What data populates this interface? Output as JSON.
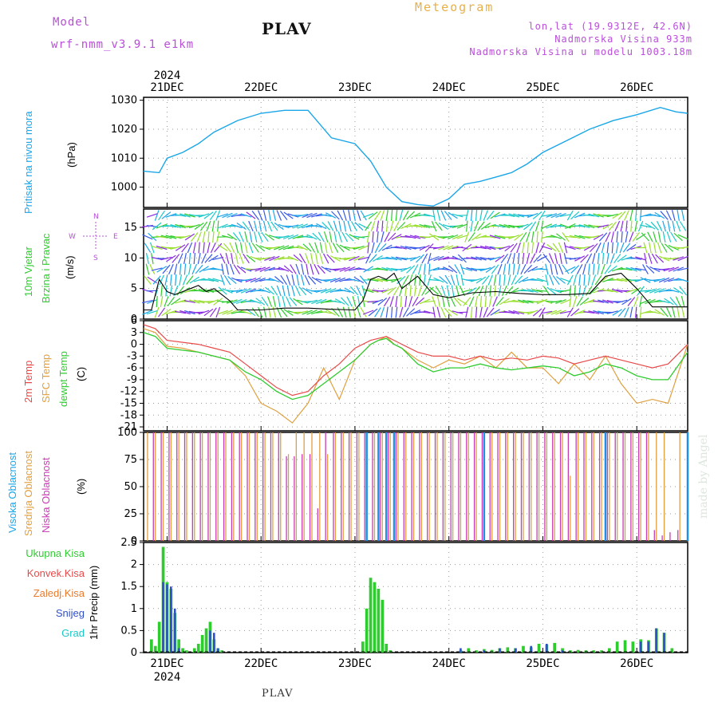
{
  "header": {
    "model_label": "Model",
    "model_name": "wrf-nmm_v3.9.1 e1km",
    "title": "PLAV",
    "subtitle": "Meteogram",
    "coords": "lon,lat (19.9312E, 42.6N)",
    "altitude": "Nadmorska Visina 933m",
    "model_altitude": "Nadmorska Visina u modelu 1003.18m"
  },
  "footer": {
    "station": "PLAV",
    "credit": "made by Angel"
  },
  "time_axis": {
    "year": "2024",
    "days": [
      "21DEC",
      "22DEC",
      "23DEC",
      "24DEC",
      "25DEC",
      "26DEC"
    ],
    "x_range_hours": [
      -6,
      133
    ]
  },
  "panels": {
    "pressure": {
      "label1": "Pritisak na nivou mora",
      "unit": "(hPa)"
    },
    "wind": {
      "label1": "10m Vjetar",
      "label2": "Brzina i Pravac",
      "unit": "(m/s)",
      "compass": [
        "N",
        "E",
        "S",
        "W"
      ]
    },
    "temp": {
      "label1": "2m Temp",
      "label2": "SFC Temp",
      "label3": "dewpt Temp",
      "unit": "(C)"
    },
    "cloud": {
      "label1": "Visoka Oblacnost",
      "label2": "Srednja Oblacnost",
      "label3": "Niska Oblacnost",
      "unit": "(%)"
    },
    "precip": {
      "legend": [
        "Ukupna Kisa",
        "Konvek.Kisa",
        "Zaledj.Kisa",
        "Snijeg",
        "Grad"
      ],
      "unit": "1hr Precip (mm)"
    }
  },
  "colors": {
    "pressure": "#1aa6e8",
    "t2m": "#e84a4a",
    "sfc": "#e0a040",
    "dew": "#2ecc2e",
    "wind_speed": "#000000",
    "gust": "#e84a4a",
    "high_cloud": "#1e90e8",
    "mid_cloud": "#e0a040",
    "low_cloud": "#c83cb4",
    "rain": "#2ecc2e",
    "snow": "#3050c8",
    "label_pressure": "#1aa6e8",
    "label_wind": "#2ecc2e",
    "label_purple": "#b84fd8"
  },
  "chart_data": [
    {
      "type": "line",
      "name": "pressure",
      "x_unit": "hours from 21DEC 00UTC",
      "ylim": [
        993,
        1031
      ],
      "yticks": [
        1000,
        1010,
        1020,
        1030
      ],
      "series": [
        {
          "x": [
            -6,
            -2,
            0,
            4,
            8,
            12,
            18,
            24,
            30,
            36,
            42,
            48,
            52,
            56,
            60,
            64,
            68,
            72,
            76,
            80,
            84,
            88,
            92,
            96,
            102,
            108,
            114,
            120,
            126,
            130,
            133
          ],
          "values": [
            1005.5,
            1005,
            1010,
            1012,
            1015,
            1019,
            1023,
            1025.5,
            1026.5,
            1026.5,
            1017,
            1015,
            1009,
            1000,
            995,
            994,
            993.5,
            996,
            1001,
            1002,
            1003.5,
            1005,
            1008,
            1012,
            1016,
            1020,
            1023,
            1025,
            1027.5,
            1026,
            1025.5
          ]
        }
      ]
    },
    {
      "type": "line",
      "name": "wind",
      "ylim": [
        0,
        18
      ],
      "yticks": [
        0,
        5,
        10,
        15
      ],
      "series": [
        {
          "name": "wind_speed",
          "x": [
            -6,
            -4,
            -2,
            0,
            2,
            4,
            6,
            8,
            10,
            12,
            14,
            16,
            18,
            20,
            24,
            30,
            36,
            42,
            48,
            50,
            52,
            54,
            56,
            58,
            60,
            62,
            64,
            66,
            68,
            72,
            78,
            84,
            90,
            96,
            102,
            108,
            112,
            116,
            120,
            124,
            128,
            133
          ],
          "values": [
            1.5,
            1.5,
            6.5,
            4.5,
            4,
            4.5,
            5,
            5.5,
            4.5,
            5,
            4,
            3,
            1.5,
            1.5,
            1.5,
            1.8,
            1.8,
            1.6,
            1.5,
            3,
            6.5,
            7,
            6.5,
            7.5,
            5,
            6,
            7,
            5.5,
            4,
            3.5,
            4.3,
            4.5,
            4.2,
            4,
            4,
            4.2,
            7,
            7.5,
            5,
            2,
            2,
            2
          ]
        }
      ]
    },
    {
      "type": "line",
      "name": "temperature",
      "ylim": [
        -22,
        6
      ],
      "yticks": [
        6,
        3,
        0,
        -3,
        -6,
        -9,
        -12,
        -15,
        -18,
        -21
      ],
      "series": [
        {
          "name": "t2m",
          "x": [
            -6,
            -3,
            0,
            4,
            8,
            12,
            16,
            20,
            24,
            28,
            32,
            36,
            40,
            44,
            48,
            52,
            54,
            56,
            58,
            60,
            64,
            68,
            72,
            76,
            80,
            84,
            88,
            92,
            96,
            100,
            104,
            108,
            112,
            116,
            120,
            124,
            128,
            133
          ],
          "values": [
            5,
            4,
            1,
            0.5,
            0,
            -1,
            -2,
            -5,
            -8,
            -11,
            -13,
            -12,
            -8,
            -5,
            -1,
            1,
            1.5,
            2,
            1,
            0,
            -2,
            -3,
            -3,
            -4,
            -3,
            -4,
            -3.5,
            -4,
            -3,
            -3.5,
            -5,
            -4,
            -3,
            -4,
            -5,
            -6,
            -5,
            0
          ]
        },
        {
          "name": "sfc",
          "x": [
            -6,
            -3,
            0,
            4,
            8,
            12,
            16,
            20,
            24,
            28,
            32,
            36,
            40,
            44,
            48,
            52,
            54,
            56,
            58,
            60,
            64,
            68,
            72,
            76,
            80,
            84,
            88,
            92,
            96,
            100,
            104,
            108,
            112,
            116,
            120,
            124,
            128,
            133
          ],
          "values": [
            4,
            3,
            -0.5,
            -1,
            -2,
            -3,
            -4,
            -8,
            -15,
            -17,
            -20,
            -15,
            -6,
            -14,
            -4,
            0,
            1,
            2,
            0,
            -1,
            -4,
            -6,
            -4,
            -5,
            -3,
            -6,
            -2,
            -6,
            -6,
            -10,
            -5,
            -9,
            -3,
            -10,
            -15,
            -14,
            -15,
            0
          ]
        },
        {
          "name": "dew",
          "x": [
            -6,
            -3,
            0,
            4,
            8,
            12,
            16,
            20,
            24,
            28,
            32,
            36,
            40,
            44,
            48,
            52,
            54,
            56,
            58,
            60,
            64,
            68,
            72,
            76,
            80,
            84,
            88,
            92,
            96,
            100,
            104,
            108,
            112,
            116,
            120,
            124,
            128,
            133
          ],
          "values": [
            3,
            2,
            -1,
            -1.5,
            -2,
            -3,
            -4,
            -7,
            -9,
            -12,
            -14,
            -13,
            -10,
            -7,
            -4,
            0,
            1,
            1.5,
            0,
            -1,
            -5,
            -7,
            -6,
            -6,
            -5,
            -6,
            -6.5,
            -6,
            -5.5,
            -6,
            -8,
            -7,
            -5,
            -6,
            -8,
            -9,
            -9,
            -2
          ]
        }
      ]
    },
    {
      "type": "bar",
      "name": "cloud_cover",
      "ylim": [
        0,
        100
      ],
      "yticks": [
        0,
        25,
        50,
        75,
        100
      ],
      "series": [
        {
          "name": "high_cloud",
          "x": [
            50,
            53,
            55,
            57,
            80,
            111,
            132
          ],
          "values": [
            100,
            100,
            100,
            100,
            100,
            100,
            100
          ]
        },
        {
          "name": "mid_cloud",
          "x": [
            -5,
            -3,
            -1,
            1,
            3,
            5,
            7,
            9,
            11,
            13,
            15,
            17,
            19,
            21,
            23,
            25,
            27,
            29,
            31,
            33,
            35,
            37,
            39,
            41,
            43,
            45,
            47,
            49,
            51,
            53,
            55,
            57,
            59,
            61,
            63,
            65,
            67,
            69,
            71,
            73,
            75,
            77,
            79,
            81,
            83,
            85,
            87,
            89,
            91,
            93,
            95,
            97,
            99,
            101,
            103,
            105,
            107,
            109,
            111,
            113,
            115,
            117,
            119,
            121,
            123,
            125,
            127,
            131
          ],
          "values": [
            100,
            100,
            100,
            100,
            100,
            100,
            100,
            100,
            100,
            100,
            100,
            100,
            100,
            100,
            100,
            100,
            100,
            100,
            80,
            100,
            100,
            100,
            100,
            80,
            100,
            100,
            100,
            100,
            100,
            100,
            100,
            100,
            100,
            100,
            100,
            100,
            100,
            100,
            100,
            100,
            100,
            100,
            100,
            100,
            100,
            100,
            100,
            100,
            100,
            100,
            100,
            100,
            100,
            100,
            60,
            100,
            100,
            100,
            100,
            100,
            100,
            100,
            100,
            100,
            100,
            100,
            100,
            100
          ]
        },
        {
          "name": "low_cloud",
          "x": [
            -4,
            -2,
            0,
            2,
            4,
            6,
            8,
            10,
            12,
            14,
            16,
            18,
            20,
            22,
            24,
            26,
            28,
            30,
            32,
            34,
            36,
            38,
            40,
            42,
            44,
            46,
            48,
            50,
            52,
            54,
            56,
            58,
            60,
            62,
            64,
            66,
            68,
            70,
            72,
            74,
            76,
            78,
            80,
            82,
            84,
            86,
            88,
            90,
            92,
            94,
            96,
            98,
            100,
            102,
            104,
            106,
            108,
            110,
            112,
            114,
            116,
            118,
            120,
            122,
            124,
            126,
            128,
            130
          ],
          "values": [
            100,
            100,
            100,
            100,
            100,
            100,
            100,
            100,
            100,
            100,
            100,
            100,
            100,
            100,
            100,
            100,
            100,
            78,
            78,
            80,
            80,
            30,
            100,
            100,
            100,
            100,
            100,
            100,
            100,
            100,
            100,
            100,
            100,
            100,
            100,
            100,
            100,
            100,
            100,
            100,
            100,
            100,
            100,
            100,
            100,
            100,
            100,
            100,
            100,
            100,
            100,
            100,
            100,
            100,
            100,
            100,
            100,
            100,
            100,
            100,
            100,
            100,
            100,
            100,
            10,
            5,
            8,
            10
          ]
        }
      ]
    },
    {
      "type": "bar",
      "name": "precipitation",
      "ylim": [
        0,
        2.5
      ],
      "yticks": [
        0,
        0.5,
        1,
        1.5,
        2,
        2.5
      ],
      "series": [
        {
          "name": "rain",
          "x": [
            -4,
            -3,
            -2,
            -1,
            0,
            1,
            2,
            3,
            4,
            5,
            7,
            8,
            9,
            10,
            11,
            12,
            13,
            14,
            50,
            51,
            52,
            53,
            54,
            55,
            56,
            57,
            75,
            77,
            79,
            81,
            83,
            85,
            87,
            89,
            91,
            93,
            95,
            97,
            99,
            101,
            103,
            105,
            107,
            109,
            111,
            113,
            115,
            117,
            119,
            121,
            123,
            125,
            127,
            129
          ],
          "values": [
            0.3,
            0.15,
            0.7,
            2.4,
            1.6,
            1.45,
            0.9,
            0.3,
            0.1,
            0.05,
            0.1,
            0.2,
            0.4,
            0.55,
            0.7,
            0.3,
            0.1,
            0.05,
            0.25,
            1.0,
            1.7,
            1.6,
            1.45,
            1.2,
            0.2,
            0.05,
            0.05,
            0.1,
            0.05,
            0.08,
            0.06,
            0.1,
            0.12,
            0.1,
            0.15,
            0.12,
            0.2,
            0.18,
            0.22,
            0.1,
            0.05,
            0.06,
            0.05,
            0.05,
            0.05,
            0.1,
            0.25,
            0.28,
            0.25,
            0.3,
            0.28,
            0.55,
            0.45,
            0.1
          ]
        },
        {
          "name": "snow",
          "x": [
            -1,
            0,
            1,
            2,
            3,
            11,
            12,
            13,
            75,
            81,
            85,
            89,
            93,
            97,
            101,
            121,
            123,
            125,
            127
          ],
          "values": [
            1.6,
            1.55,
            1.5,
            1.0,
            0.1,
            0.5,
            0.45,
            0.1,
            0.1,
            0.05,
            0.1,
            0.1,
            0.15,
            0.2,
            0.05,
            0.25,
            0.25,
            0.55,
            0.45
          ]
        }
      ]
    }
  ]
}
